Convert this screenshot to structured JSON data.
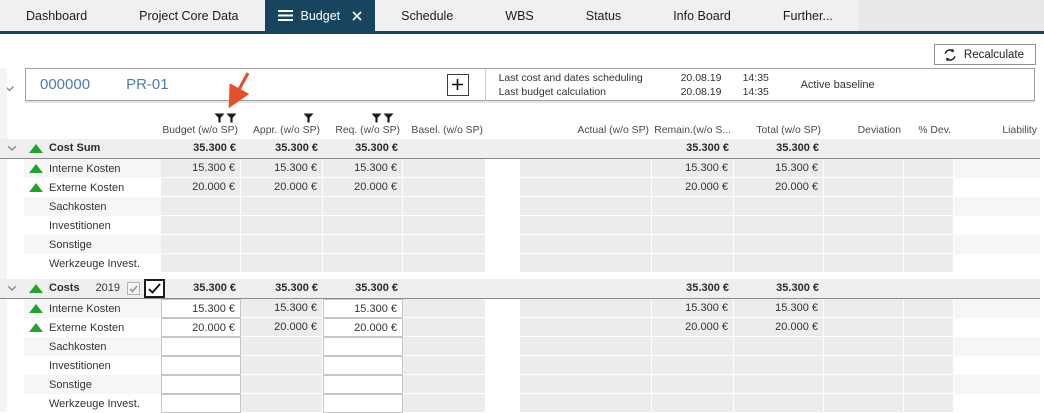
{
  "tabs": [
    {
      "label": "Dashboard",
      "active": false
    },
    {
      "label": "Project Core Data",
      "active": false
    },
    {
      "label": "Budget",
      "active": true
    },
    {
      "label": "Schedule",
      "active": false
    },
    {
      "label": "WBS",
      "active": false
    },
    {
      "label": "Status",
      "active": false
    },
    {
      "label": "Info Board",
      "active": false
    },
    {
      "label": "Further...",
      "active": false
    }
  ],
  "toolbar": {
    "recalculate_label": "Recalculate"
  },
  "project": {
    "number": "000000",
    "code": "PR-01",
    "info": [
      {
        "label": "Last cost and dates scheduling",
        "date": "20.08.19",
        "time": "14:35"
      },
      {
        "label": "Last budget calculation",
        "date": "20.08.19",
        "time": "14:35"
      }
    ],
    "baseline_status": "Active baseline"
  },
  "annotation": {
    "type": "arrow",
    "color": "#e2512a",
    "points_at": "budget-column-filter-icons"
  },
  "table": {
    "columns": [
      {
        "label": "Budget (w/o SP)",
        "filters": 2
      },
      {
        "label": "Appr. (w/o SP)",
        "filters": 1
      },
      {
        "label": "Req. (w/o SP)",
        "filters": 2
      },
      {
        "label": "Basel. (w/o SP)",
        "filters": 0
      },
      {
        "label": "Actual (w/o SP)",
        "filters": 0
      },
      {
        "label": "Remain.(w/o S...",
        "filters": 0
      },
      {
        "label": "Total (w/o SP)",
        "filters": 0
      },
      {
        "label": "Deviation",
        "filters": 0
      },
      {
        "label": "% Dev.",
        "filters": 0
      },
      {
        "label": "Liability",
        "filters": 0
      }
    ],
    "sections": [
      {
        "editable": false,
        "header": {
          "label": "Cost Sum",
          "trend": true,
          "values": [
            "35.300 €",
            "35.300 €",
            "35.300 €",
            "",
            "",
            "35.300 €",
            "35.300 €",
            "",
            "",
            ""
          ]
        },
        "rows": [
          {
            "label": "Interne Kosten",
            "trend": true,
            "values": [
              "15.300 €",
              "15.300 €",
              "15.300 €",
              "",
              "",
              "15.300 €",
              "15.300 €",
              "",
              "",
              ""
            ]
          },
          {
            "label": "Externe Kosten",
            "trend": true,
            "values": [
              "20.000 €",
              "20.000 €",
              "20.000 €",
              "",
              "",
              "20.000 €",
              "20.000 €",
              "",
              "",
              ""
            ]
          },
          {
            "label": "Sachkosten",
            "trend": false,
            "values": [
              "",
              "",
              "",
              "",
              "",
              "",
              "",
              "",
              "",
              ""
            ]
          },
          {
            "label": "Investitionen",
            "trend": false,
            "values": [
              "",
              "",
              "",
              "",
              "",
              "",
              "",
              "",
              "",
              ""
            ]
          },
          {
            "label": "Sonstige",
            "trend": false,
            "values": [
              "",
              "",
              "",
              "",
              "",
              "",
              "",
              "",
              "",
              ""
            ]
          },
          {
            "label": "Werkzeuge Invest.",
            "trend": false,
            "values": [
              "",
              "",
              "",
              "",
              "",
              "",
              "",
              "",
              "",
              ""
            ]
          }
        ]
      },
      {
        "editable": true,
        "header": {
          "label": "Costs",
          "trend": true,
          "year": "2019",
          "year_checkbox_small": "checked-disabled",
          "year_checkbox_large": "checked",
          "values": [
            "35.300 €",
            "35.300 €",
            "35.300 €",
            "",
            "",
            "35.300 €",
            "35.300 €",
            "",
            "",
            ""
          ]
        },
        "rows": [
          {
            "label": "Interne Kosten",
            "trend": true,
            "values": [
              "15.300 €",
              "15.300 €",
              "15.300 €",
              "",
              "",
              "15.300 €",
              "15.300 €",
              "",
              "",
              ""
            ]
          },
          {
            "label": "Externe Kosten",
            "trend": true,
            "values": [
              "20.000 €",
              "20.000 €",
              "20.000 €",
              "",
              "",
              "20.000 €",
              "20.000 €",
              "",
              "",
              ""
            ]
          },
          {
            "label": "Sachkosten",
            "trend": false,
            "values": [
              "",
              "",
              "",
              "",
              "",
              "",
              "",
              "",
              "",
              ""
            ]
          },
          {
            "label": "Investitionen",
            "trend": false,
            "values": [
              "",
              "",
              "",
              "",
              "",
              "",
              "",
              "",
              "",
              ""
            ]
          },
          {
            "label": "Sonstige",
            "trend": false,
            "values": [
              "",
              "",
              "",
              "",
              "",
              "",
              "",
              "",
              "",
              ""
            ]
          },
          {
            "label": "Werkzeuge Invest.",
            "trend": false,
            "values": [
              "",
              "",
              "",
              "",
              "",
              "",
              "",
              "",
              "",
              ""
            ]
          }
        ]
      }
    ]
  },
  "colors": {
    "accent_navy": "#17455f",
    "trend_green": "#22a42c",
    "project_blue": "#4e7bab",
    "annotation_orange": "#e2512a",
    "readonly_cell": "#ececec"
  }
}
